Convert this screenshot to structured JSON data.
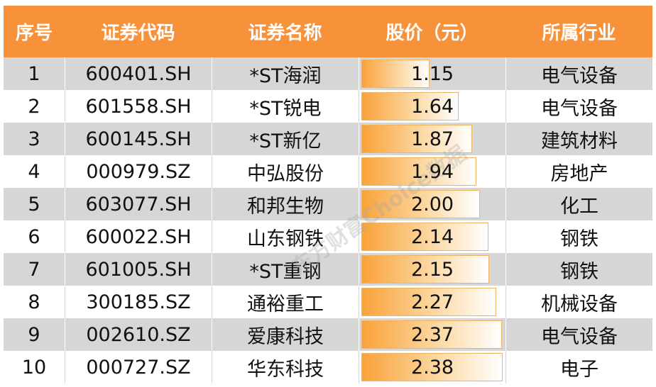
{
  "headers": [
    "序号",
    "证券代码",
    "证券名称",
    "股价（元）",
    "所属行业"
  ],
  "rows": [
    {
      "no": "1",
      "code": "600401.SH",
      "name": "*ST海润",
      "price": "1.15",
      "industry": "电气设备"
    },
    {
      "no": "2",
      "code": "601558.SH",
      "name": "*ST锐电",
      "price": "1.64",
      "industry": "电气设备"
    },
    {
      "no": "3",
      "code": "600145.SH",
      "name": "*ST新亿",
      "price": "1.87",
      "industry": "建筑材料"
    },
    {
      "no": "4",
      "code": "000979.SZ",
      "name": "中弘股份",
      "price": "1.94",
      "industry": "房地产"
    },
    {
      "no": "5",
      "code": "603077.SH",
      "name": "和邦生物",
      "price": "2.00",
      "industry": "化工"
    },
    {
      "no": "6",
      "code": "600022.SH",
      "name": "山东钢铁",
      "price": "2.14",
      "industry": "钢铁"
    },
    {
      "no": "7",
      "code": "601005.SH",
      "name": "*ST重钢",
      "price": "2.15",
      "industry": "钢铁"
    },
    {
      "no": "8",
      "code": "300185.SZ",
      "name": "通裕重工",
      "price": "2.27",
      "industry": "机械设备"
    },
    {
      "no": "9",
      "code": "002610.SZ",
      "name": "爱康科技",
      "price": "2.37",
      "industry": "电气设备"
    },
    {
      "no": "10",
      "code": "000727.SZ",
      "name": "华东科技",
      "price": "2.38",
      "industry": "电子"
    }
  ],
  "watermark": "东方财富Choice数据",
  "colors": {
    "header": "#f7913a",
    "bar": "#f9a23a",
    "shade": "#d6d6d6"
  }
}
